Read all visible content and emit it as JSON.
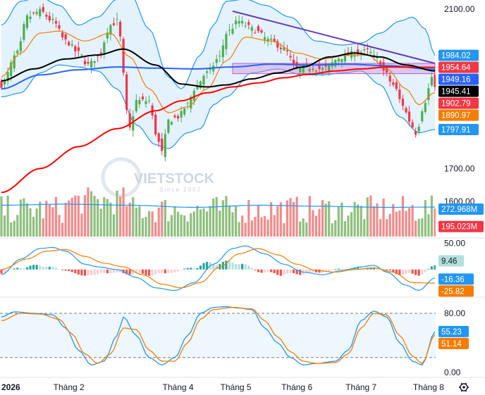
{
  "chart_data": {
    "type": "candlestick",
    "watermark": {
      "brand": "VIETSTOCK",
      "tagline": "Since 2002",
      "colors": {
        "letters": "#c8d3de",
        "ring": "#d5dde6"
      }
    },
    "x_axis": {
      "labels": [
        {
          "label": "2026",
          "index": 0,
          "bold": true
        },
        {
          "label": "Tháng 2",
          "index": 21
        },
        {
          "label": "Tháng 4",
          "index": 55
        },
        {
          "label": "Tháng 5",
          "index": 73
        },
        {
          "label": "Tháng 6",
          "index": 92
        },
        {
          "label": "Tháng 7",
          "index": 112
        },
        {
          "label": "Tháng 8",
          "index": 133
        }
      ],
      "bar_count": 136
    },
    "price_panel": {
      "y_ticks": [
        "2100.00",
        "1700.00"
      ],
      "ylim": [
        1593,
        2123
      ],
      "candles_anchor": [
        [
          0,
          1910
        ],
        [
          5,
          1990
        ],
        [
          8,
          2080
        ],
        [
          12,
          2095
        ],
        [
          16,
          2070
        ],
        [
          20,
          2020
        ],
        [
          24,
          1990
        ],
        [
          27,
          1960
        ],
        [
          30,
          1980
        ],
        [
          34,
          2060
        ],
        [
          36,
          2070
        ],
        [
          40,
          1800
        ],
        [
          42,
          1870
        ],
        [
          46,
          1870
        ],
        [
          48,
          1790
        ],
        [
          50,
          1740
        ],
        [
          52,
          1820
        ],
        [
          55,
          1830
        ],
        [
          58,
          1860
        ],
        [
          60,
          1900
        ],
        [
          64,
          1940
        ],
        [
          68,
          1980
        ],
        [
          70,
          2040
        ],
        [
          74,
          2070
        ],
        [
          76,
          2060
        ],
        [
          78,
          2050
        ],
        [
          84,
          2020
        ],
        [
          88,
          2000
        ],
        [
          92,
          1950
        ],
        [
          95,
          1955
        ],
        [
          100,
          1950
        ],
        [
          106,
          1980
        ],
        [
          110,
          1990
        ],
        [
          114,
          1995
        ],
        [
          117,
          1975
        ],
        [
          119,
          1945
        ],
        [
          122,
          1910
        ],
        [
          125,
          1860
        ],
        [
          127,
          1820
        ],
        [
          129,
          1790
        ],
        [
          132,
          1870
        ],
        [
          134,
          1930
        ],
        [
          135,
          1903
        ]
      ],
      "sma_black_anchor": [
        [
          0,
          1920
        ],
        [
          10,
          1950
        ],
        [
          20,
          1975
        ],
        [
          30,
          1985
        ],
        [
          38,
          2000
        ],
        [
          48,
          1960
        ],
        [
          56,
          1912
        ],
        [
          64,
          1905
        ],
        [
          70,
          1910
        ],
        [
          78,
          1925
        ],
        [
          86,
          1940
        ],
        [
          94,
          1955
        ],
        [
          102,
          1980
        ],
        [
          110,
          1990
        ],
        [
          118,
          1980
        ],
        [
          126,
          1960
        ],
        [
          135,
          1945
        ]
      ],
      "sma_blue_anchor": [
        [
          0,
          1900
        ],
        [
          12,
          1935
        ],
        [
          24,
          1948
        ],
        [
          36,
          1955
        ],
        [
          48,
          1952
        ],
        [
          60,
          1950
        ],
        [
          72,
          1955
        ],
        [
          84,
          1962
        ],
        [
          96,
          1960
        ],
        [
          108,
          1962
        ],
        [
          120,
          1958
        ],
        [
          135,
          1949
        ]
      ],
      "sma_red_anchor": [
        [
          0,
          1640
        ],
        [
          12,
          1700
        ],
        [
          24,
          1755
        ],
        [
          36,
          1800
        ],
        [
          48,
          1845
        ],
        [
          56,
          1870
        ],
        [
          64,
          1890
        ],
        [
          72,
          1905
        ],
        [
          80,
          1915
        ],
        [
          88,
          1928
        ],
        [
          96,
          1937
        ],
        [
          104,
          1945
        ],
        [
          112,
          1950
        ],
        [
          120,
          1955
        ],
        [
          135,
          1954
        ]
      ],
      "ema_orange_anchor": [
        [
          0,
          1930
        ],
        [
          6,
          1990
        ],
        [
          12,
          2040
        ],
        [
          18,
          2045
        ],
        [
          26,
          2020
        ],
        [
          34,
          2040
        ],
        [
          40,
          1980
        ],
        [
          46,
          1900
        ],
        [
          52,
          1840
        ],
        [
          58,
          1855
        ],
        [
          64,
          1900
        ],
        [
          70,
          1970
        ],
        [
          76,
          2030
        ],
        [
          84,
          2020
        ],
        [
          92,
          1990
        ],
        [
          100,
          1975
        ],
        [
          108,
          1985
        ],
        [
          114,
          1985
        ],
        [
          120,
          1950
        ],
        [
          126,
          1900
        ],
        [
          130,
          1860
        ],
        [
          135,
          1891
        ]
      ],
      "boll_upper_anchor": [
        [
          0,
          2060
        ],
        [
          6,
          2120
        ],
        [
          12,
          2130
        ],
        [
          18,
          2110
        ],
        [
          24,
          2060
        ],
        [
          30,
          2080
        ],
        [
          36,
          2125
        ],
        [
          40,
          2140
        ],
        [
          46,
          2050
        ],
        [
          52,
          1930
        ],
        [
          56,
          1900
        ],
        [
          62,
          1985
        ],
        [
          66,
          2060
        ],
        [
          70,
          2120
        ],
        [
          76,
          2125
        ],
        [
          82,
          2110
        ],
        [
          90,
          2080
        ],
        [
          98,
          2020
        ],
        [
          106,
          2010
        ],
        [
          112,
          2015
        ],
        [
          118,
          2040
        ],
        [
          124,
          2070
        ],
        [
          128,
          2080
        ],
        [
          132,
          2050
        ],
        [
          135,
          1984
        ]
      ],
      "boll_lower_anchor": [
        [
          0,
          1880
        ],
        [
          6,
          1890
        ],
        [
          12,
          1940
        ],
        [
          18,
          1960
        ],
        [
          24,
          1955
        ],
        [
          30,
          1945
        ],
        [
          36,
          1900
        ],
        [
          42,
          1810
        ],
        [
          48,
          1760
        ],
        [
          52,
          1750
        ],
        [
          58,
          1790
        ],
        [
          62,
          1800
        ],
        [
          66,
          1860
        ],
        [
          70,
          1880
        ],
        [
          78,
          1940
        ],
        [
          86,
          1950
        ],
        [
          94,
          1935
        ],
        [
          100,
          1935
        ],
        [
          106,
          1940
        ],
        [
          112,
          1945
        ],
        [
          118,
          1910
        ],
        [
          124,
          1830
        ],
        [
          130,
          1790
        ],
        [
          135,
          1798
        ]
      ],
      "trendline": {
        "from": [
          72,
          2095
        ],
        "to": [
          135,
          1964
        ]
      },
      "zone": {
        "from_index": 72,
        "to_index": 135,
        "top": 1964,
        "bottom": 1938
      },
      "tags": [
        {
          "text": "1984.02",
          "value": 1984.02,
          "bg": "#2196f3",
          "fg": "#ffffff"
        },
        {
          "text": "1954.64",
          "value": 1954.64,
          "bg": "#f23645",
          "fg": "#ffffff"
        },
        {
          "text": "1949.16",
          "value": 1949.16,
          "bg": "#2962ff",
          "fg": "#ffffff"
        },
        {
          "text": "1945.41",
          "value": 1945.41,
          "bg": "#000000",
          "fg": "#ffffff"
        },
        {
          "text": "1902.79",
          "value": 1902.79,
          "bg": "#f23645",
          "fg": "#ffffff"
        },
        {
          "text": "1890.97",
          "value": 1890.97,
          "bg": "#f57c00",
          "fg": "#ffffff"
        },
        {
          "text": "1797.91",
          "value": 1797.91,
          "bg": "#2196f3",
          "fg": "#ffffff"
        }
      ]
    },
    "volume_panel": {
      "y_ticks": [
        "1600.00"
      ],
      "ylim": [
        0,
        560
      ],
      "ma_anchor": [
        [
          0,
          290
        ],
        [
          20,
          300
        ],
        [
          40,
          290
        ],
        [
          60,
          270
        ],
        [
          80,
          290
        ],
        [
          100,
          280
        ],
        [
          120,
          270
        ],
        [
          135,
          273
        ]
      ],
      "tags": [
        {
          "text": "272.968M",
          "value": 272.968,
          "bg": "#2196f3",
          "fg": "#ffffff"
        },
        {
          "text": "195.023M",
          "value": 195.023,
          "bg": "#f23645",
          "fg": "#ffffff"
        }
      ]
    },
    "macd_panel": {
      "y_ticks": [
        "50.00"
      ],
      "ylim": [
        -50,
        60
      ],
      "macd_anchor": [
        [
          0,
          -10
        ],
        [
          6,
          20
        ],
        [
          12,
          40
        ],
        [
          16,
          42
        ],
        [
          20,
          35
        ],
        [
          26,
          10
        ],
        [
          30,
          5
        ],
        [
          36,
          0
        ],
        [
          42,
          -15
        ],
        [
          48,
          -35
        ],
        [
          54,
          -40
        ],
        [
          60,
          -25
        ],
        [
          66,
          10
        ],
        [
          72,
          40
        ],
        [
          76,
          45
        ],
        [
          82,
          30
        ],
        [
          88,
          10
        ],
        [
          94,
          -5
        ],
        [
          100,
          -10
        ],
        [
          106,
          -2
        ],
        [
          112,
          5
        ],
        [
          116,
          8
        ],
        [
          120,
          -5
        ],
        [
          126,
          -30
        ],
        [
          130,
          -40
        ],
        [
          135,
          -16
        ]
      ],
      "signal_anchor": [
        [
          0,
          0
        ],
        [
          8,
          20
        ],
        [
          14,
          35
        ],
        [
          20,
          38
        ],
        [
          26,
          25
        ],
        [
          32,
          12
        ],
        [
          38,
          5
        ],
        [
          44,
          -10
        ],
        [
          50,
          -28
        ],
        [
          56,
          -35
        ],
        [
          62,
          -25
        ],
        [
          68,
          5
        ],
        [
          74,
          30
        ],
        [
          80,
          40
        ],
        [
          86,
          28
        ],
        [
          92,
          10
        ],
        [
          98,
          -2
        ],
        [
          104,
          -5
        ],
        [
          110,
          0
        ],
        [
          116,
          3
        ],
        [
          122,
          -5
        ],
        [
          128,
          -25
        ],
        [
          135,
          -26
        ]
      ],
      "tags": [
        {
          "text": "9.46",
          "value": 9.46,
          "bg": "#b2dfdb",
          "fg": "#131722"
        },
        {
          "text": "-16.36",
          "value": -16.36,
          "bg": "#2196f3",
          "fg": "#ffffff"
        },
        {
          "text": "-25.82",
          "value": -25.82,
          "bg": "#f57c00",
          "fg": "#ffffff"
        }
      ]
    },
    "stoch_panel": {
      "y_ticks": [
        "80.00",
        "0.00"
      ],
      "ylim": [
        -5,
        100
      ],
      "overbought": 80,
      "oversold": 20,
      "k_anchor": [
        [
          0,
          75
        ],
        [
          4,
          82
        ],
        [
          10,
          80
        ],
        [
          16,
          78
        ],
        [
          20,
          60
        ],
        [
          24,
          30
        ],
        [
          28,
          10
        ],
        [
          32,
          15
        ],
        [
          36,
          50
        ],
        [
          38,
          75
        ],
        [
          42,
          50
        ],
        [
          46,
          20
        ],
        [
          50,
          10
        ],
        [
          54,
          20
        ],
        [
          58,
          50
        ],
        [
          62,
          80
        ],
        [
          66,
          88
        ],
        [
          70,
          89
        ],
        [
          74,
          87
        ],
        [
          78,
          85
        ],
        [
          82,
          60
        ],
        [
          86,
          40
        ],
        [
          90,
          20
        ],
        [
          94,
          10
        ],
        [
          98,
          12
        ],
        [
          104,
          15
        ],
        [
          108,
          30
        ],
        [
          112,
          70
        ],
        [
          116,
          83
        ],
        [
          120,
          75
        ],
        [
          124,
          40
        ],
        [
          128,
          15
        ],
        [
          131,
          10
        ],
        [
          135,
          55
        ]
      ],
      "d_anchor": [
        [
          0,
          70
        ],
        [
          6,
          80
        ],
        [
          12,
          79
        ],
        [
          18,
          72
        ],
        [
          22,
          52
        ],
        [
          26,
          25
        ],
        [
          30,
          12
        ],
        [
          34,
          25
        ],
        [
          38,
          60
        ],
        [
          42,
          58
        ],
        [
          46,
          30
        ],
        [
          50,
          15
        ],
        [
          54,
          15
        ],
        [
          58,
          40
        ],
        [
          62,
          72
        ],
        [
          66,
          85
        ],
        [
          72,
          88
        ],
        [
          78,
          86
        ],
        [
          82,
          70
        ],
        [
          86,
          48
        ],
        [
          90,
          28
        ],
        [
          94,
          15
        ],
        [
          98,
          12
        ],
        [
          104,
          13
        ],
        [
          108,
          25
        ],
        [
          112,
          60
        ],
        [
          116,
          80
        ],
        [
          120,
          78
        ],
        [
          124,
          50
        ],
        [
          128,
          22
        ],
        [
          131,
          12
        ],
        [
          135,
          51
        ]
      ],
      "tags": [
        {
          "text": "55.23",
          "value": 55.23,
          "bg": "#2196f3",
          "fg": "#ffffff"
        },
        {
          "text": "51.14",
          "value": 51.14,
          "bg": "#f57c00",
          "fg": "#ffffff"
        }
      ]
    },
    "colors": {
      "up": "#4caf50",
      "down": "#f23645",
      "vol_up": "#8fbf7f",
      "vol_down": "#f28b8b",
      "macd_up": "#26a69a",
      "macd_down": "#ef5350",
      "macd_up_light": "#b2dfdb",
      "macd_down_light": "#ffcdd2",
      "boll": "#2196f3",
      "boll_fill": "rgba(33,150,243,0.12)",
      "sma_black": "#000000",
      "sma_blue": "#2962ff",
      "sma_red": "#f00",
      "ema_orange": "#f57c00",
      "trendline": "#673ab7",
      "zone": "rgba(206,147,216,0.45)",
      "stoch_fill": "rgba(33,150,243,0.08)"
    }
  }
}
